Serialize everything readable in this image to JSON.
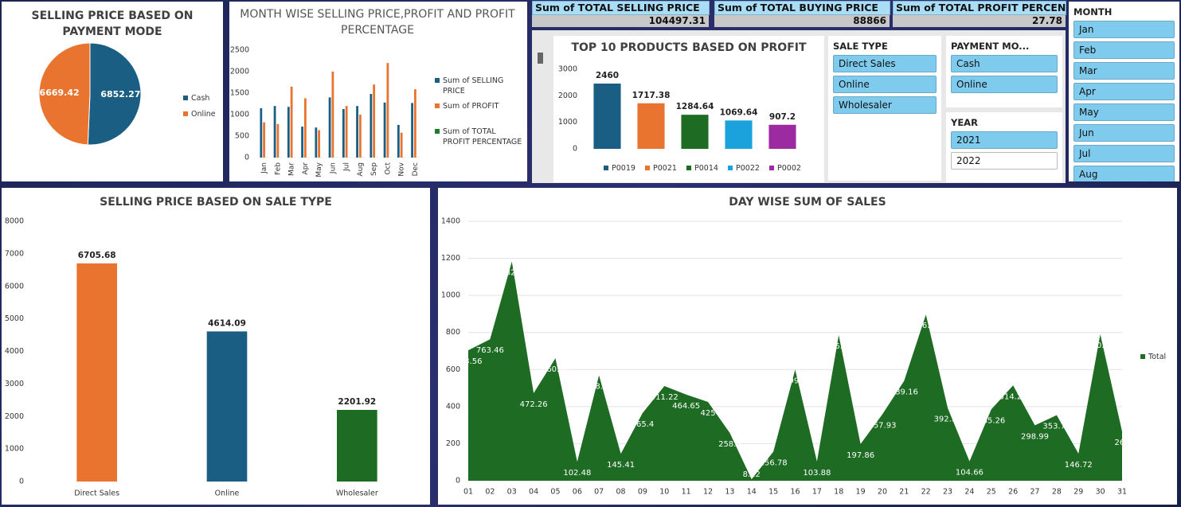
{
  "chart_data": [
    {
      "type": "pie",
      "title": "SELLING PRICE BASED ON PAYMENT MODE",
      "categories": [
        "Cash",
        "Online"
      ],
      "values": [
        6852.27,
        6669.42
      ],
      "colors": [
        "#1b5e83",
        "#e8742f"
      ],
      "legend": "right"
    },
    {
      "type": "bar",
      "title": "MONTH WISE SELLING PRICE,PROFIT AND PROFIT PERCENTAGE",
      "categories": [
        "Jan",
        "Feb",
        "Mar",
        "Apr",
        "May",
        "Jun",
        "Jul",
        "Aug",
        "Sep",
        "Oct",
        "Nov",
        "Dec"
      ],
      "series": [
        {
          "name": "Sum of SELLING PRICE",
          "color": "#1b5e83",
          "values": [
            1150,
            1200,
            1180,
            720,
            700,
            1400,
            1130,
            1200,
            1480,
            1280,
            760,
            1270
          ]
        },
        {
          "name": "Sum of PROFIT",
          "color": "#e8742f",
          "values": [
            820,
            780,
            1650,
            1380,
            640,
            2000,
            1200,
            1000,
            1700,
            2200,
            580,
            1590
          ]
        },
        {
          "name": "Sum of TOTAL PROFIT PERCENTAGE",
          "color": "#1e7a2c",
          "values": [
            2.3,
            2.2,
            2.4,
            2.1,
            2.2,
            2.5,
            2.3,
            2.4,
            2.4,
            2.3,
            2.2,
            2.5
          ]
        }
      ],
      "ylim": [
        0,
        2500
      ],
      "yticks": [
        0,
        500,
        1000,
        1500,
        2000,
        2500
      ],
      "legend": "right"
    },
    {
      "type": "bar",
      "title": "TOP 10 PRODUCTS BASED ON PROFIT",
      "categories": [
        "P0019",
        "P0021",
        "P0014",
        "P0022",
        "P0002"
      ],
      "values": [
        2460,
        1717.38,
        1284.64,
        1069.64,
        907.2
      ],
      "colors": [
        "#1b5e83",
        "#e8742f",
        "#1e6b23",
        "#1ba1dc",
        "#9c2aa0"
      ],
      "ylim": [
        0,
        3000
      ],
      "yticks": [
        0,
        1000,
        2000,
        3000
      ],
      "legend": "bottom",
      "data_labels": true
    },
    {
      "type": "bar",
      "title": "SELLING PRICE BASED ON SALE TYPE",
      "categories": [
        "Direct Sales",
        "Online",
        "Wholesaler"
      ],
      "values": [
        6705.68,
        4614.09,
        2201.92
      ],
      "colors": [
        "#e8742f",
        "#1b5e83",
        "#1e6b23"
      ],
      "ylim": [
        0,
        8000
      ],
      "yticks": [
        0,
        1000,
        2000,
        3000,
        4000,
        5000,
        6000,
        7000,
        8000
      ],
      "data_labels": true
    },
    {
      "type": "area",
      "title": "DAY WISE SUM OF SALES",
      "categories": [
        "01",
        "02",
        "03",
        "04",
        "05",
        "06",
        "07",
        "08",
        "09",
        "10",
        "11",
        "12",
        "13",
        "14",
        "15",
        "16",
        "17",
        "18",
        "19",
        "20",
        "21",
        "22",
        "23",
        "24",
        "25",
        "26",
        "27",
        "28",
        "29",
        "30",
        "31"
      ],
      "series": [
        {
          "name": "Total",
          "color": "#1e6b23",
          "values": [
            703.56,
            763.46,
            1182.53,
            472.26,
            660.96,
            102.48,
            568.49,
            145.41,
            365.4,
            511.22,
            464.65,
            425,
            258.4,
            8.22,
            156.78,
            599.5,
            103.88,
            785.22,
            197.86,
            357.93,
            539.16,
            896.69,
            392.33,
            104.66,
            385.26,
            514.24,
            298.99,
            353.73,
            146.72,
            790.12,
            266
          ]
        }
      ],
      "ylim": [
        0,
        1400
      ],
      "yticks": [
        0,
        200,
        400,
        600,
        800,
        1000,
        1200,
        1400
      ],
      "grid": true,
      "legend": "right",
      "data_labels": true
    }
  ],
  "kpis": [
    {
      "label": "Sum of TOTAL SELLING PRICE",
      "value": 104497.31
    },
    {
      "label": "Sum of TOTAL BUYING PRICE",
      "value": 88866
    },
    {
      "label": "Sum of TOTAL PROFIT PERCENTAGE",
      "value": 27.78
    }
  ],
  "slicers": [
    {
      "title": "SALE TYPE",
      "items": [
        "Direct Sales",
        "Online",
        "Wholesaler"
      ]
    },
    {
      "title": "PAYMENT MO...",
      "items": [
        "Cash",
        "Online"
      ]
    },
    {
      "title": "YEAR",
      "items": [
        "2021",
        "2022"
      ],
      "selected": [
        true,
        false
      ]
    },
    {
      "title": "MONTH",
      "items": [
        "Jan",
        "Feb",
        "Mar",
        "Apr",
        "May",
        "Jun",
        "Jul",
        "Aug"
      ]
    }
  ]
}
